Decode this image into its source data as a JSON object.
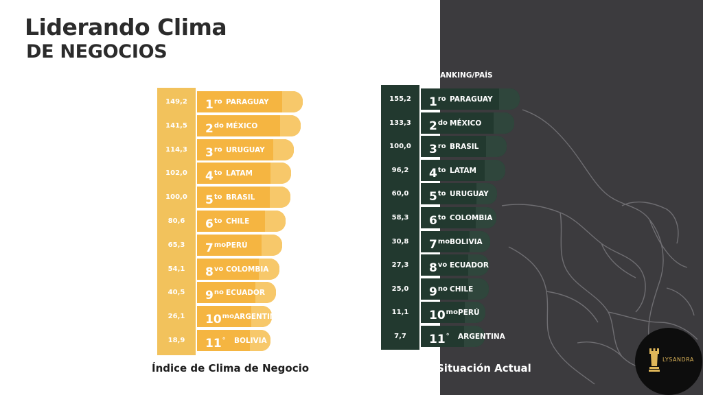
{
  "title": {
    "line1": "Liderando Clima",
    "line2": "DE NEGOCIOS"
  },
  "colors": {
    "left_bar": "#f5b541",
    "right_bar": "#22392f",
    "right_panel": "#3c3b3e"
  },
  "chart_data": [
    {
      "type": "bar",
      "title": "Índice de Clima de Negocio",
      "rows": [
        {
          "value": "149,2",
          "rank": "1",
          "suffix": "ro",
          "country": "PARAGUAY"
        },
        {
          "value": "141,5",
          "rank": "2",
          "suffix": "do",
          "country": "MÉXICO"
        },
        {
          "value": "114,3",
          "rank": "3",
          "suffix": "ro",
          "country": "URUGUAY"
        },
        {
          "value": "102,0",
          "rank": "4",
          "suffix": "to",
          "country": "LATAM"
        },
        {
          "value": "100,0",
          "rank": "5",
          "suffix": "to",
          "country": "BRASIL"
        },
        {
          "value": "80,6",
          "rank": "6",
          "suffix": "to",
          "country": "CHILE"
        },
        {
          "value": "65,3",
          "rank": "7",
          "suffix": "mo",
          "country": "PERÚ"
        },
        {
          "value": "54,1",
          "rank": "8",
          "suffix": "vo",
          "country": "COLOMBIA"
        },
        {
          "value": "40,5",
          "rank": "9",
          "suffix": "no",
          "country": "ECUADOR"
        },
        {
          "value": "26,1",
          "rank": "10",
          "suffix": "mo",
          "country": "ARGENTINA"
        },
        {
          "value": "18,9",
          "rank": "11",
          "suffix": "°",
          "country": "BOLIVIA"
        }
      ]
    },
    {
      "type": "bar",
      "title": "Situación Actual",
      "header": "RANKING/PAÍS",
      "rows": [
        {
          "value": "155,2",
          "rank": "1",
          "suffix": "ro",
          "country": "PARAGUAY"
        },
        {
          "value": "133,3",
          "rank": "2",
          "suffix": "do",
          "country": "MÉXICO"
        },
        {
          "value": "100,0",
          "rank": "3",
          "suffix": "ro",
          "country": "BRASIL"
        },
        {
          "value": "96,2",
          "rank": "4",
          "suffix": "to",
          "country": "LATAM"
        },
        {
          "value": "60,0",
          "rank": "5",
          "suffix": "to",
          "country": "URUGUAY"
        },
        {
          "value": "58,3",
          "rank": "6",
          "suffix": "to",
          "country": "COLOMBIA"
        },
        {
          "value": "30,8",
          "rank": "7",
          "suffix": "mo",
          "country": "BOLIVIA"
        },
        {
          "value": "27,3",
          "rank": "8",
          "suffix": "vo",
          "country": "ECUADOR"
        },
        {
          "value": "25,0",
          "rank": "9",
          "suffix": "no",
          "country": "CHILE"
        },
        {
          "value": "11,1",
          "rank": "10",
          "suffix": "mo",
          "country": "PERÚ"
        },
        {
          "value": "7,7",
          "rank": "11",
          "suffix": "°",
          "country": "ARGENTINA"
        }
      ]
    }
  ],
  "logo": {
    "brand": "LYSANDRA",
    "icon": "chess-rook-icon"
  }
}
